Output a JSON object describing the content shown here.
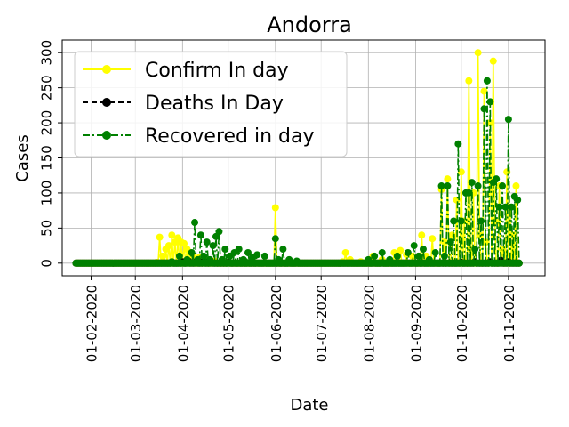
{
  "chart_data": {
    "type": "line",
    "title": "Andorra",
    "xlabel": "Date",
    "ylabel": "Cases",
    "x_ticks": [
      "01-02-2020",
      "01-03-2020",
      "01-04-2020",
      "01-05-2020",
      "01-06-2020",
      "01-07-2020",
      "01-08-2020",
      "01-09-2020",
      "01-10-2020",
      "01-11-2020"
    ],
    "y_ticks": [
      "0",
      "50",
      "100",
      "150",
      "200",
      "250",
      "300"
    ],
    "ylim": [
      -18,
      318
    ],
    "xlim": [
      "2020-01-13",
      "2020-11-25"
    ],
    "grid": true,
    "legend_position": "top-left",
    "series": [
      {
        "name": "Confirm In day",
        "color": "#ffff00",
        "linestyle": "solid",
        "points": [
          [
            "2020-01-22",
            0
          ],
          [
            "2020-02-01",
            0
          ],
          [
            "2020-02-15",
            0
          ],
          [
            "2020-03-01",
            0
          ],
          [
            "2020-03-15",
            1
          ],
          [
            "2020-03-17",
            37
          ],
          [
            "2020-03-19",
            10
          ],
          [
            "2020-03-21",
            20
          ],
          [
            "2020-03-23",
            25
          ],
          [
            "2020-03-25",
            40
          ],
          [
            "2020-03-27",
            30
          ],
          [
            "2020-03-29",
            36
          ],
          [
            "2020-03-31",
            30
          ],
          [
            "2020-04-02",
            28
          ],
          [
            "2020-04-04",
            20
          ],
          [
            "2020-04-06",
            15
          ],
          [
            "2020-04-08",
            10
          ],
          [
            "2020-04-12",
            8
          ],
          [
            "2020-04-16",
            5
          ],
          [
            "2020-04-22",
            3
          ],
          [
            "2020-05-01",
            1
          ],
          [
            "2020-05-15",
            0
          ],
          [
            "2020-06-01",
            79
          ],
          [
            "2020-06-02",
            0
          ],
          [
            "2020-06-15",
            0
          ],
          [
            "2020-07-01",
            0
          ],
          [
            "2020-07-15",
            2
          ],
          [
            "2020-07-17",
            15
          ],
          [
            "2020-07-20",
            5
          ],
          [
            "2020-07-27",
            2
          ],
          [
            "2020-08-04",
            10
          ],
          [
            "2020-08-10",
            5
          ],
          [
            "2020-08-18",
            15
          ],
          [
            "2020-08-22",
            18
          ],
          [
            "2020-08-26",
            12
          ],
          [
            "2020-08-30",
            10
          ],
          [
            "2020-09-02",
            0
          ],
          [
            "2020-09-05",
            40
          ],
          [
            "2020-09-08",
            10
          ],
          [
            "2020-09-12",
            35
          ],
          [
            "2020-09-15",
            0
          ],
          [
            "2020-09-18",
            105
          ],
          [
            "2020-09-20",
            30
          ],
          [
            "2020-09-22",
            120
          ],
          [
            "2020-09-25",
            40
          ],
          [
            "2020-09-28",
            90
          ],
          [
            "2020-10-01",
            130
          ],
          [
            "2020-10-03",
            60
          ],
          [
            "2020-10-06",
            260
          ],
          [
            "2020-10-07",
            20
          ],
          [
            "2020-10-09",
            100
          ],
          [
            "2020-10-12",
            300
          ],
          [
            "2020-10-13",
            40
          ],
          [
            "2020-10-16",
            245
          ],
          [
            "2020-10-17",
            30
          ],
          [
            "2020-10-20",
            200
          ],
          [
            "2020-10-22",
            288
          ],
          [
            "2020-10-23",
            60
          ],
          [
            "2020-10-26",
            110
          ],
          [
            "2020-10-28",
            20
          ],
          [
            "2020-10-31",
            130
          ],
          [
            "2020-11-02",
            80
          ],
          [
            "2020-11-04",
            40
          ],
          [
            "2020-11-06",
            110
          ],
          [
            "2020-11-08",
            0
          ]
        ]
      },
      {
        "name": "Deaths In Day",
        "color": "#000000",
        "linestyle": "dashed",
        "points": [
          [
            "2020-01-22",
            0
          ],
          [
            "2020-02-15",
            0
          ],
          [
            "2020-03-15",
            0
          ],
          [
            "2020-03-25",
            1
          ],
          [
            "2020-04-01",
            2
          ],
          [
            "2020-04-05",
            3
          ],
          [
            "2020-04-10",
            2
          ],
          [
            "2020-04-15",
            3
          ],
          [
            "2020-04-20",
            1
          ],
          [
            "2020-05-01",
            1
          ],
          [
            "2020-05-15",
            0
          ],
          [
            "2020-06-15",
            0
          ],
          [
            "2020-07-15",
            0
          ],
          [
            "2020-08-15",
            0
          ],
          [
            "2020-09-15",
            0
          ],
          [
            "2020-10-01",
            1
          ],
          [
            "2020-10-10",
            2
          ],
          [
            "2020-10-20",
            2
          ],
          [
            "2020-10-27",
            4
          ],
          [
            "2020-11-01",
            2
          ],
          [
            "2020-11-08",
            0
          ]
        ]
      },
      {
        "name": "Recovered in day",
        "color": "#008000",
        "linestyle": "dashdot",
        "points": [
          [
            "2020-01-22",
            0
          ],
          [
            "2020-02-15",
            0
          ],
          [
            "2020-03-15",
            0
          ],
          [
            "2020-03-25",
            2
          ],
          [
            "2020-03-30",
            10
          ],
          [
            "2020-04-04",
            5
          ],
          [
            "2020-04-07",
            15
          ],
          [
            "2020-04-09",
            58
          ],
          [
            "2020-04-11",
            5
          ],
          [
            "2020-04-13",
            40
          ],
          [
            "2020-04-15",
            10
          ],
          [
            "2020-04-17",
            30
          ],
          [
            "2020-04-19",
            5
          ],
          [
            "2020-04-21",
            25
          ],
          [
            "2020-04-23",
            38
          ],
          [
            "2020-04-25",
            45
          ],
          [
            "2020-04-27",
            5
          ],
          [
            "2020-04-29",
            20
          ],
          [
            "2020-05-02",
            10
          ],
          [
            "2020-05-05",
            15
          ],
          [
            "2020-05-08",
            20
          ],
          [
            "2020-05-11",
            5
          ],
          [
            "2020-05-14",
            15
          ],
          [
            "2020-05-17",
            8
          ],
          [
            "2020-05-20",
            12
          ],
          [
            "2020-05-25",
            10
          ],
          [
            "2020-06-01",
            35
          ],
          [
            "2020-06-03",
            5
          ],
          [
            "2020-06-06",
            20
          ],
          [
            "2020-06-10",
            5
          ],
          [
            "2020-06-15",
            3
          ],
          [
            "2020-07-01",
            0
          ],
          [
            "2020-07-15",
            0
          ],
          [
            "2020-08-01",
            5
          ],
          [
            "2020-08-05",
            10
          ],
          [
            "2020-08-10",
            15
          ],
          [
            "2020-08-15",
            5
          ],
          [
            "2020-08-20",
            10
          ],
          [
            "2020-08-27",
            15
          ],
          [
            "2020-08-31",
            25
          ],
          [
            "2020-09-03",
            10
          ],
          [
            "2020-09-06",
            20
          ],
          [
            "2020-09-10",
            5
          ],
          [
            "2020-09-14",
            15
          ],
          [
            "2020-09-18",
            110
          ],
          [
            "2020-09-20",
            10
          ],
          [
            "2020-09-22",
            110
          ],
          [
            "2020-09-24",
            30
          ],
          [
            "2020-09-26",
            60
          ],
          [
            "2020-09-29",
            170
          ],
          [
            "2020-10-01",
            60
          ],
          [
            "2020-10-04",
            100
          ],
          [
            "2020-10-06",
            100
          ],
          [
            "2020-10-08",
            115
          ],
          [
            "2020-10-10",
            20
          ],
          [
            "2020-10-12",
            110
          ],
          [
            "2020-10-14",
            60
          ],
          [
            "2020-10-16",
            220
          ],
          [
            "2020-10-18",
            260
          ],
          [
            "2020-10-20",
            230
          ],
          [
            "2020-10-22",
            115
          ],
          [
            "2020-10-24",
            120
          ],
          [
            "2020-10-26",
            80
          ],
          [
            "2020-10-28",
            110
          ],
          [
            "2020-10-30",
            80
          ],
          [
            "2020-11-01",
            205
          ],
          [
            "2020-11-03",
            80
          ],
          [
            "2020-11-05",
            95
          ],
          [
            "2020-11-07",
            90
          ],
          [
            "2020-11-08",
            0
          ]
        ]
      }
    ]
  }
}
